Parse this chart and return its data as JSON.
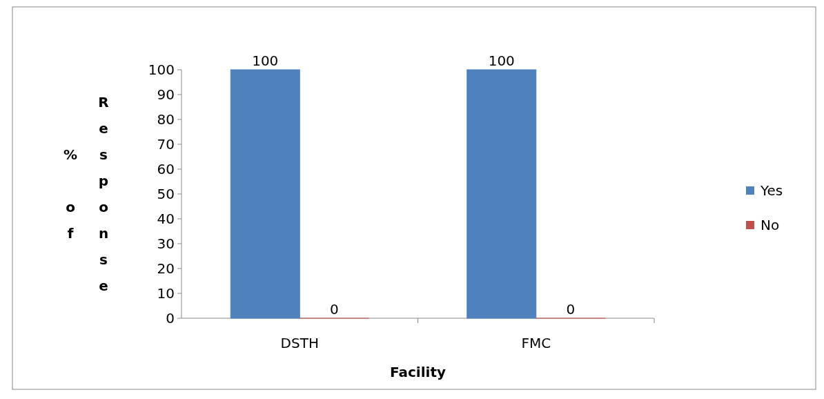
{
  "chart_data": {
    "type": "bar",
    "xlabel": "Facility",
    "ylabel": "% of Response",
    "categories": [
      "DSTH",
      "FMC"
    ],
    "series": [
      {
        "name": "Yes",
        "color": "#4f81bd",
        "values": [
          100,
          100
        ]
      },
      {
        "name": "No",
        "color": "#c0504d",
        "values": [
          0,
          0
        ]
      }
    ],
    "ylim": [
      0,
      100
    ],
    "yticks": [
      0,
      10,
      20,
      30,
      40,
      50,
      60,
      70,
      80,
      90,
      100
    ],
    "data_labels": true,
    "legend": "right",
    "grid": false
  }
}
